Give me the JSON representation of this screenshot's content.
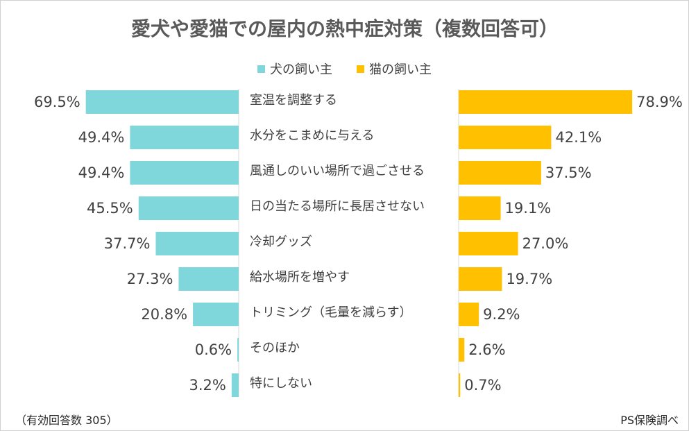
{
  "chart_data": {
    "type": "bar",
    "orientation": "horizontal-butterfly",
    "title": "愛犬や愛猫での屋内の熱中症対策（複数回答可）",
    "categories": [
      "室温を調整する",
      "水分をこまめに与える",
      "風通しのいい場所で過ごさせる",
      "日の当たる場所に長居させない",
      "冷却グッズ",
      "給水場所を増やす",
      "トリミング（毛量を減らす）",
      "そのほか",
      "特にしない"
    ],
    "series": [
      {
        "name": "犬の飼い主",
        "color": "#7fd7dc",
        "values": [
          69.5,
          49.4,
          49.4,
          45.5,
          37.7,
          27.3,
          20.8,
          0.6,
          3.2
        ],
        "labels": [
          "69.5%",
          "49.4%",
          "49.4%",
          "45.5%",
          "37.7%",
          "27.3%",
          "20.8%",
          "0.6%",
          "3.2%"
        ]
      },
      {
        "name": "猫の飼い主",
        "color": "#ffc000",
        "values": [
          78.9,
          42.1,
          37.5,
          19.1,
          27.0,
          19.7,
          9.2,
          2.6,
          0.7
        ],
        "labels": [
          "78.9%",
          "42.1%",
          "37.5%",
          "19.1%",
          "27.0%",
          "19.7%",
          "9.2%",
          "2.6%",
          "0.7%"
        ]
      }
    ],
    "legend_position": "top-center",
    "grid": false
  },
  "footer": {
    "left": "（有効回答数 305）",
    "right": "PS保険調べ"
  }
}
